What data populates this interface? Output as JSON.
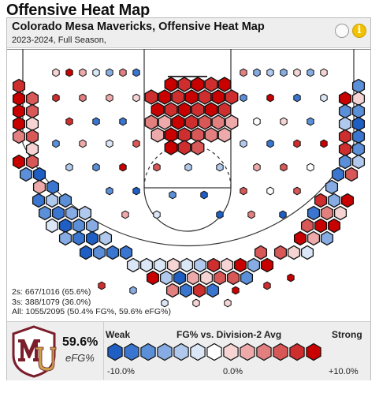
{
  "page_title": "Offensive Heat Map",
  "card": {
    "title": "Colorado Mesa Mavericks, Offensive Heat Map",
    "subtitle": "2023-2024, Full Season,",
    "info_glyph": "i"
  },
  "stats": {
    "twos": "2s: 667/1016 (65.6%)",
    "threes": "3s: 388/1079 (36.0%)",
    "all": "All: 1055/2095 (50.4% FG%, 59.6% eFG%)"
  },
  "summary": {
    "efg_value": "59.6%",
    "efg_label": "eFG%",
    "logo_letters": "MU"
  },
  "legend": {
    "weak_label": "Weak",
    "title": "FG% vs. Division-2 Avg",
    "strong_label": "Strong",
    "min_label": "-10.0%",
    "mid_label": "0.0%",
    "max_label": "+10.0%",
    "colors": [
      "#1f5fc4",
      "#3a76d0",
      "#5b8fd8",
      "#86ace3",
      "#b1c9ec",
      "#dbe6f6",
      "#ffffff",
      "#f6d4d4",
      "#eeaaaa",
      "#e27f7f",
      "#d85757",
      "#cf2e2e",
      "#c80000"
    ]
  },
  "colors": {
    "court_lines": "#333333",
    "header_bg": "#eeeeee",
    "hex_border": "#111111"
  }
}
